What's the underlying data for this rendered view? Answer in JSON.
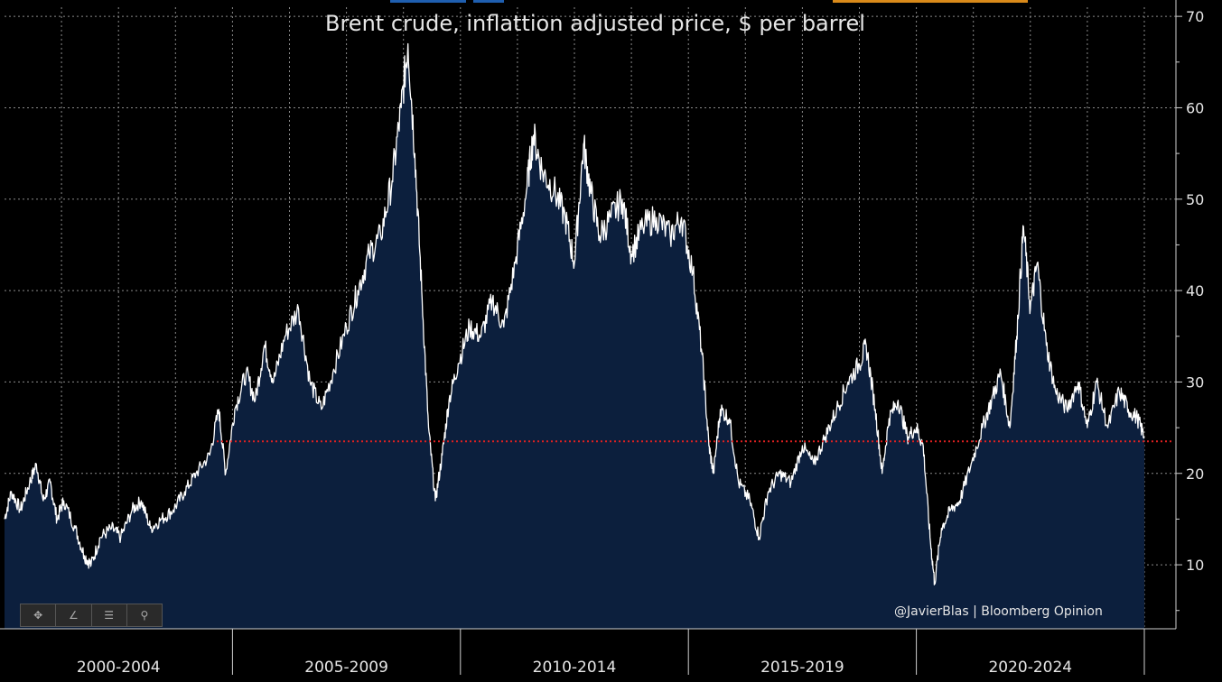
{
  "chart_data": {
    "type": "area",
    "title": "Brent crude, inflattion adjusted price, $ per barrel",
    "xlabel": "",
    "ylabel": "",
    "xlim": [
      1999.0,
      2024.0
    ],
    "ylim": [
      3,
      71
    ],
    "y_ticks": [
      10,
      20,
      30,
      40,
      50,
      60,
      70
    ],
    "x_tick_labels": [
      "2000-2004",
      "2005-2009",
      "2010-2014",
      "2015-2019",
      "2020-2024"
    ],
    "x_tick_centers": [
      2001.5,
      2006.5,
      2011.5,
      2016.5,
      2021.5
    ],
    "x_dividers": [
      2004.0,
      2009.0,
      2014.0,
      2019.0,
      2024.0
    ],
    "grid": true,
    "reference_line": {
      "y": 23.5,
      "color": "#e02020",
      "style": "dotted"
    },
    "series": [
      {
        "points": [
          [
            1999.0,
            15
          ],
          [
            1999.15,
            18
          ],
          [
            1999.35,
            16
          ],
          [
            1999.55,
            19
          ],
          [
            1999.7,
            21
          ],
          [
            1999.85,
            17
          ],
          [
            2000.0,
            19
          ],
          [
            2000.15,
            15
          ],
          [
            2000.3,
            17
          ],
          [
            2000.55,
            14
          ],
          [
            2000.75,
            11
          ],
          [
            2000.9,
            10
          ],
          [
            2001.1,
            13
          ],
          [
            2001.35,
            14
          ],
          [
            2001.55,
            13
          ],
          [
            2001.8,
            16
          ],
          [
            2002.0,
            17
          ],
          [
            2002.2,
            14
          ],
          [
            2002.45,
            15
          ],
          [
            2002.7,
            16
          ],
          [
            2002.95,
            18
          ],
          [
            2003.2,
            20
          ],
          [
            2003.5,
            22
          ],
          [
            2003.7,
            27
          ],
          [
            2003.85,
            20
          ],
          [
            2004.05,
            27
          ],
          [
            2004.3,
            31
          ],
          [
            2004.5,
            28
          ],
          [
            2004.7,
            34
          ],
          [
            2004.9,
            30
          ],
          [
            2005.15,
            35
          ],
          [
            2005.45,
            38
          ],
          [
            2005.7,
            30
          ],
          [
            2005.95,
            27
          ],
          [
            2006.2,
            31
          ],
          [
            2006.5,
            36
          ],
          [
            2006.75,
            40
          ],
          [
            2007.0,
            44
          ],
          [
            2007.25,
            46
          ],
          [
            2007.5,
            52
          ],
          [
            2007.7,
            60
          ],
          [
            2007.85,
            67
          ],
          [
            2008.0,
            55
          ],
          [
            2008.15,
            40
          ],
          [
            2008.3,
            25
          ],
          [
            2008.45,
            17
          ],
          [
            2008.6,
            22
          ],
          [
            2008.75,
            28
          ],
          [
            2008.95,
            32
          ],
          [
            2009.2,
            36
          ],
          [
            2009.45,
            35
          ],
          [
            2009.7,
            39
          ],
          [
            2009.95,
            36
          ],
          [
            2010.2,
            43
          ],
          [
            2010.45,
            51
          ],
          [
            2010.6,
            57
          ],
          [
            2010.8,
            53
          ],
          [
            2011.05,
            51
          ],
          [
            2011.3,
            48
          ],
          [
            2011.5,
            43
          ],
          [
            2011.7,
            56
          ],
          [
            2011.85,
            51
          ],
          [
            2012.05,
            46
          ],
          [
            2012.3,
            48
          ],
          [
            2012.55,
            50
          ],
          [
            2012.75,
            44
          ],
          [
            2013.0,
            47
          ],
          [
            2013.3,
            48
          ],
          [
            2013.6,
            46
          ],
          [
            2013.85,
            48
          ],
          [
            2014.1,
            42
          ],
          [
            2014.3,
            33
          ],
          [
            2014.45,
            23
          ],
          [
            2014.55,
            20
          ],
          [
            2014.7,
            27
          ],
          [
            2014.9,
            26
          ],
          [
            2015.1,
            19
          ],
          [
            2015.35,
            17
          ],
          [
            2015.55,
            13
          ],
          [
            2015.75,
            18
          ],
          [
            2016.0,
            20
          ],
          [
            2016.25,
            19
          ],
          [
            2016.5,
            23
          ],
          [
            2016.75,
            21
          ],
          [
            2017.0,
            24
          ],
          [
            2017.25,
            27
          ],
          [
            2017.5,
            30
          ],
          [
            2017.75,
            32
          ],
          [
            2017.9,
            34
          ],
          [
            2018.1,
            27
          ],
          [
            2018.25,
            20
          ],
          [
            2018.4,
            26
          ],
          [
            2018.6,
            28
          ],
          [
            2018.8,
            24
          ],
          [
            2019.0,
            25
          ],
          [
            2019.15,
            23
          ],
          [
            2019.3,
            13
          ],
          [
            2019.4,
            8
          ],
          [
            2019.55,
            14
          ],
          [
            2019.75,
            16
          ],
          [
            2019.95,
            17
          ],
          [
            2020.2,
            21
          ],
          [
            2020.45,
            25
          ],
          [
            2020.65,
            28
          ],
          [
            2020.85,
            31
          ],
          [
            2021.05,
            25
          ],
          [
            2021.2,
            35
          ],
          [
            2021.35,
            47
          ],
          [
            2021.5,
            38
          ],
          [
            2021.65,
            43
          ],
          [
            2021.85,
            34
          ],
          [
            2022.05,
            29
          ],
          [
            2022.3,
            27
          ],
          [
            2022.55,
            30
          ],
          [
            2022.75,
            25
          ],
          [
            2022.95,
            30
          ],
          [
            2023.2,
            25
          ],
          [
            2023.45,
            29
          ],
          [
            2023.65,
            27
          ],
          [
            2023.85,
            26
          ],
          [
            2024.0,
            24
          ]
        ]
      }
    ]
  },
  "toolbar": {
    "icons": [
      "crosshair-icon",
      "pencil-icon",
      "list-icon",
      "magnifier-icon"
    ],
    "glyphs": [
      "✥",
      "∠",
      "☰",
      "⚲"
    ]
  },
  "credit": {
    "text": "@JavierBlas | Bloomberg Opinion"
  },
  "colors": {
    "background": "#000000",
    "area_fill": "#0c1f3d",
    "line": "#ffffff",
    "grid": "#8a8a8a",
    "axis_text": "#e6e6e6",
    "reference": "#e02020",
    "strip_blue": "#1f5fb0",
    "strip_orange": "#d98a1a"
  }
}
